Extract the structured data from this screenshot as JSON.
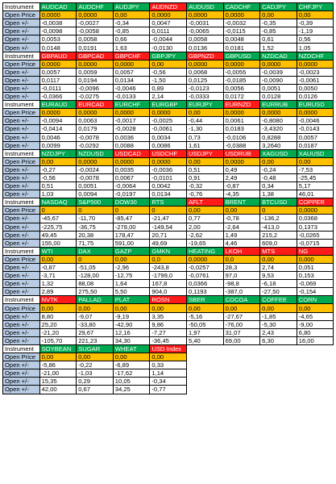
{
  "labels": {
    "instrument": "Instrument",
    "open_price": "Open Price",
    "open_change": "Open +/-"
  },
  "colors": {
    "green": "#00a84f",
    "red": "#ff1a1a",
    "price": "#ffc000",
    "label": "#b8cce4"
  },
  "blocks": [
    {
      "symbols": [
        {
          "name": "AUDCAD",
          "color": "green"
        },
        {
          "name": "AUDCHF",
          "color": "green"
        },
        {
          "name": "AUDJPY",
          "color": "green"
        },
        {
          "name": "AUDNZD",
          "color": "red"
        },
        {
          "name": "AUDUSD",
          "color": "green"
        },
        {
          "name": "CADCHF",
          "color": "green"
        },
        {
          "name": "CADJPY",
          "color": "green"
        },
        {
          "name": "CHFJPY",
          "color": "green"
        }
      ],
      "open_price": [
        "0,0000",
        "0,0000",
        "0,00",
        "0,0000",
        "0,0000",
        "0,0000",
        "0,00",
        "0,00"
      ],
      "rows": [
        [
          "-0,0038",
          "-0,0027",
          "-0,34",
          "0,0047",
          "-0,0031",
          "-0,0032",
          "-0,35",
          "-0,39"
        ],
        [
          "-0,0098",
          "-0,0058",
          "-0,85",
          "0,0111",
          "-0,0065",
          "-0,0115",
          "-0,85",
          "-1,19"
        ],
        [
          "0,0053",
          "0,0058",
          "0,66",
          "-0,0044",
          "0,0058",
          "0,0048",
          "0,61",
          "0,56"
        ],
        [
          "0,0148",
          "0,0191",
          "1,63",
          "-0,0130",
          "0,0136",
          "0,0181",
          "1,52",
          "1,05"
        ]
      ]
    },
    {
      "symbols": [
        {
          "name": "GBPAUD",
          "color": "red"
        },
        {
          "name": "GBPCAD",
          "color": "red"
        },
        {
          "name": "GBPCHF",
          "color": "red"
        },
        {
          "name": "GBPJPY",
          "color": "green"
        },
        {
          "name": "GBPNZD",
          "color": "red"
        },
        {
          "name": "GBPUSD",
          "color": "green"
        },
        {
          "name": "NZDCAD",
          "color": "green"
        },
        {
          "name": "NZDCHF",
          "color": "green"
        }
      ],
      "open_price": [
        "0,0000",
        "0,0000",
        "0,0000",
        "0,00",
        "0,0000",
        "0,0000",
        "0,0000",
        "0,0000"
      ],
      "rows": [
        [
          "0,0057",
          "0,0059",
          "0,0057",
          "-0,56",
          "0,0068",
          "-0,0055",
          "-0,0039",
          "-0,0023"
        ],
        [
          "0,0117",
          "0,0194",
          "0,0134",
          "-1,50",
          "0,0125",
          "-0,0185",
          "-0,0090",
          "-0,0061"
        ],
        [
          "-0,0111",
          "-0,0096",
          "-0,0046",
          "0,89",
          "-0,0123",
          "0,0056",
          "0,0051",
          "0,0050"
        ],
        [
          "-0,0366",
          "-0,0275",
          "-0,0133",
          "2,14",
          "-0,0333",
          "0,0172",
          "0,0128",
          "0,0126"
        ]
      ]
    },
    {
      "symbols": [
        {
          "name": "EURAUD",
          "color": "green"
        },
        {
          "name": "EURCAD",
          "color": "red"
        },
        {
          "name": "EURCHF",
          "color": "green"
        },
        {
          "name": "EURGBP",
          "color": "green"
        },
        {
          "name": "EURJPY",
          "color": "green"
        },
        {
          "name": "EURNZD",
          "color": "red"
        },
        {
          "name": "EURRUB",
          "color": "green"
        },
        {
          "name": "EURUSD",
          "color": "green"
        }
      ],
      "open_price": [
        "0,0000",
        "0,0000",
        "0,0000",
        "0,0000",
        "0,00",
        "0,0000",
        "0,0000",
        "0,0000"
      ],
      "rows": [
        [
          "-0,0094",
          "0,0063",
          "-0,0017",
          "-0,0025",
          "-0,44",
          "0,0061",
          "-0,8080",
          "-0,0046"
        ],
        [
          "-0,0414",
          "0,0179",
          "-0,0028",
          "-0,0061",
          "-1,30",
          "0,0183",
          "-3,4320",
          "-0,0143"
        ],
        [
          "0,0046",
          "-0,0078",
          "0,0036",
          "0,0034",
          "0,73",
          "-0,0106",
          "0,8288",
          "0,0057"
        ],
        [
          "0,0099",
          "-0,0292",
          "0,0088",
          "0,0086",
          "1,61",
          "-0,0388",
          "3,2640",
          "0,0187"
        ]
      ]
    },
    {
      "symbols": [
        {
          "name": "NZDJPY",
          "color": "green"
        },
        {
          "name": "NZDUSD",
          "color": "green"
        },
        {
          "name": "USDCAD",
          "color": "red"
        },
        {
          "name": "USDCHF",
          "color": "red"
        },
        {
          "name": "USDJPY",
          "color": "red"
        },
        {
          "name": "USDRUB",
          "color": "red"
        },
        {
          "name": "XAGUSD",
          "color": "green"
        },
        {
          "name": "XAUUSD",
          "color": "green"
        }
      ],
      "open_price": [
        "0,00",
        "0,0000",
        "0,0000",
        "0,0000",
        "0,00",
        "0,0000",
        "0,00",
        "0,00"
      ],
      "rows": [
        [
          "-0,27",
          "-0,0024",
          "0,0035",
          "-0,0036",
          "0,51",
          "0,49",
          "-0,24",
          "-7,53"
        ],
        [
          "-0,56",
          "-0,0078",
          "0,0067",
          "-0,0101",
          "0,91",
          "2,49",
          "-0,48",
          "-25,45"
        ],
        [
          "0,51",
          "0,0051",
          "-0,0064",
          "0,0042",
          "-0,32",
          "-0,87",
          "0,34",
          "5,17"
        ],
        [
          "1,03",
          "0,0094",
          "-0,0197",
          "0,0134",
          "-0,76",
          "-4,35",
          "1,38",
          "46,01"
        ]
      ]
    },
    {
      "symbols": [
        {
          "name": "NASDAQ",
          "color": "green"
        },
        {
          "name": "S&P500",
          "color": "green"
        },
        {
          "name": "DOW30",
          "color": "green"
        },
        {
          "name": "RTS",
          "color": "green"
        },
        {
          "name": "AFLT",
          "color": "red"
        },
        {
          "name": "BRENT",
          "color": "green"
        },
        {
          "name": "BTCUSD",
          "color": "green"
        },
        {
          "name": "COPPER",
          "color": "red"
        }
      ],
      "open_price": [
        "0",
        "0",
        "0",
        "0",
        "0,00",
        "0,00",
        "0",
        "0,0000"
      ],
      "rows": [
        [
          "-45,67",
          "-11,70",
          "-85,47",
          "-21,47",
          "0,77",
          "-0,78",
          "-136,2",
          "0,0368"
        ],
        [
          "-225,75",
          "-36,75",
          "-278,00",
          "-149,54",
          "2,00",
          "-2,64",
          "-413,0",
          "0,1373"
        ],
        [
          "49,45",
          "20,38",
          "178,47",
          "20,71",
          "-2,62",
          "1,49",
          "215,2",
          "-0,0265"
        ],
        [
          "155,00",
          "71,75",
          "591,00",
          "49,69",
          "-19,65",
          "4,46",
          "609,0",
          "-0,0715"
        ]
      ]
    },
    {
      "symbols": [
        {
          "name": "WTI",
          "color": "green"
        },
        {
          "name": "DAX",
          "color": "green"
        },
        {
          "name": "GAZP",
          "color": "green"
        },
        {
          "name": "GMKN",
          "color": "green"
        },
        {
          "name": "HEATING",
          "color": "green"
        },
        {
          "name": "LKOH",
          "color": "red"
        },
        {
          "name": "MTS",
          "color": "red"
        },
        {
          "name": "NG",
          "color": "red"
        }
      ],
      "open_price": [
        "0,00",
        "0",
        "0,00",
        "0,0",
        "0,0000",
        "0,0",
        "0,00",
        "0,000"
      ],
      "rows": [
        [
          "-0,87",
          "-51,05",
          "-2,96",
          "-243,8",
          "-0,0257",
          "28,3",
          "2,74",
          "0,051"
        ],
        [
          "-3,71",
          "-128,00",
          "-12,75",
          "-1799,0",
          "-0,0761",
          "97,0",
          "9,53",
          "0,153"
        ],
        [
          "1,32",
          "88,08",
          "1,64",
          "167,8",
          "0,0366",
          "-98,8",
          "-6,18",
          "-0,069"
        ],
        [
          "2,89",
          "275,50",
          "5,50",
          "904,0",
          "0,1193",
          "-387,0",
          "-27,50",
          "-0,154"
        ]
      ]
    },
    {
      "symbols": [
        {
          "name": "NVTK",
          "color": "red"
        },
        {
          "name": "PALLAD",
          "color": "green"
        },
        {
          "name": "PLAT",
          "color": "green"
        },
        {
          "name": "ROSN",
          "color": "red"
        },
        {
          "name": "SBER",
          "color": "green"
        },
        {
          "name": "COCOA",
          "color": "green"
        },
        {
          "name": "COFFEE",
          "color": "green"
        },
        {
          "name": "CORN",
          "color": "green"
        }
      ],
      "open_price": [
        "0,00",
        "0,00",
        "0,00",
        "0,00",
        "0,00",
        "0,00",
        "0,00",
        "0,00"
      ],
      "rows": [
        [
          "8,80",
          "-9,07",
          "-9,19",
          "3,35",
          "-5,16",
          "-27,67",
          "-1,85",
          "-4,65"
        ],
        [
          "25,20",
          "-33,80",
          "-42,90",
          "9,86",
          "-50,05",
          "-76,00",
          "-5,30",
          "-9,00"
        ],
        [
          "-21,20",
          "29,67",
          "12,16",
          "-7,27",
          "1,97",
          "31,07",
          "2,43",
          "6,80"
        ],
        [
          "-105,70",
          "221,23",
          "34,30",
          "-36,45",
          "5,40",
          "69,00",
          "6,30",
          "16,00"
        ]
      ]
    },
    {
      "symbols": [
        {
          "name": "SOYBEAN",
          "color": "green"
        },
        {
          "name": "SUGAR",
          "color": "green"
        },
        {
          "name": "WHEAT",
          "color": "green"
        },
        {
          "name": "USD Index",
          "color": "red"
        }
      ],
      "open_price": [
        "0,00",
        "0,00",
        "0,00",
        "0,00"
      ],
      "rows": [
        [
          "-5,86",
          "-0,22",
          "-6,89",
          "0,33"
        ],
        [
          "-21,00",
          "-1,03",
          "-17,62",
          "1,14"
        ],
        [
          "15,35",
          "0,29",
          "10,05",
          "-0,34"
        ],
        [
          "42,00",
          "0,67",
          "34,25",
          "-0,77"
        ]
      ]
    }
  ]
}
